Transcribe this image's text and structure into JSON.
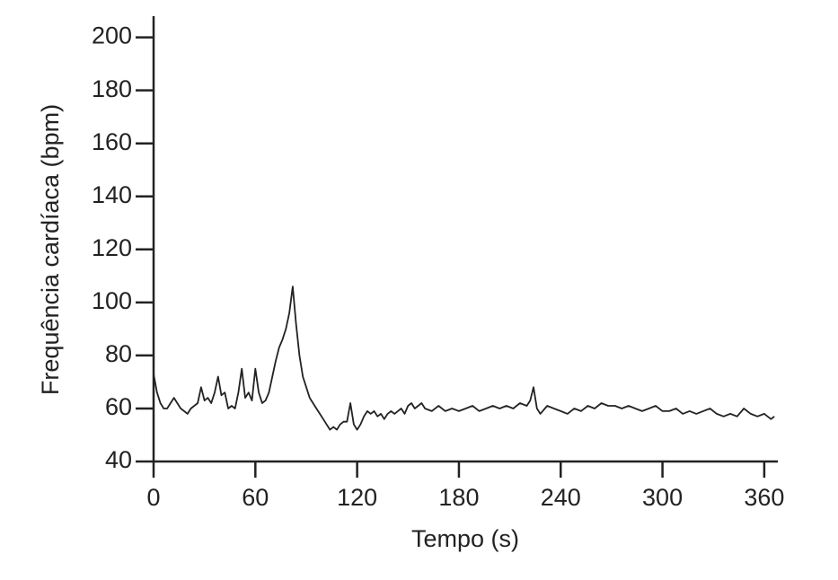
{
  "chart_data": {
    "type": "line",
    "x_label": "Tempo (s)",
    "y_label": "Frequência cardíaca (bpm)",
    "xlim": [
      0,
      368
    ],
    "ylim": [
      40,
      208
    ],
    "xticks": [
      0,
      60,
      120,
      180,
      240,
      300,
      360
    ],
    "yticks": [
      40,
      60,
      80,
      100,
      120,
      140,
      160,
      180,
      200
    ],
    "series": [
      {
        "color": "#222222",
        "x": [
          0,
          2,
          4,
          6,
          8,
          10,
          12,
          14,
          16,
          18,
          20,
          22,
          24,
          26,
          28,
          30,
          32,
          34,
          36,
          38,
          40,
          42,
          44,
          46,
          48,
          50,
          52,
          54,
          56,
          58,
          60,
          62,
          64,
          66,
          68,
          70,
          72,
          74,
          76,
          78,
          80,
          82,
          84,
          86,
          88,
          90,
          92,
          94,
          96,
          98,
          100,
          102,
          104,
          106,
          108,
          110,
          112,
          114,
          116,
          118,
          120,
          122,
          124,
          126,
          128,
          130,
          132,
          134,
          136,
          138,
          140,
          142,
          144,
          146,
          148,
          150,
          152,
          154,
          156,
          158,
          160,
          164,
          168,
          172,
          176,
          180,
          184,
          188,
          192,
          196,
          200,
          204,
          208,
          212,
          216,
          220,
          222,
          224,
          226,
          228,
          232,
          236,
          240,
          244,
          248,
          252,
          256,
          260,
          264,
          268,
          272,
          276,
          280,
          284,
          288,
          292,
          296,
          300,
          304,
          308,
          312,
          316,
          320,
          324,
          328,
          332,
          336,
          340,
          344,
          348,
          352,
          356,
          360,
          364,
          366
        ],
        "values": [
          73,
          66,
          62,
          60,
          60,
          62,
          64,
          62,
          60,
          59,
          58,
          60,
          61,
          62,
          68,
          63,
          64,
          62,
          66,
          72,
          65,
          66,
          60,
          61,
          60,
          66,
          75,
          64,
          66,
          63,
          75,
          66,
          62,
          63,
          66,
          72,
          78,
          83,
          86,
          90,
          96,
          106,
          92,
          80,
          72,
          68,
          64,
          62,
          60,
          58,
          56,
          54,
          52,
          53,
          52,
          54,
          55,
          55,
          62,
          54,
          52,
          54,
          57,
          59,
          58,
          59,
          57,
          58,
          56,
          58,
          59,
          58,
          59,
          60,
          58,
          61,
          62,
          60,
          61,
          62,
          60,
          59,
          61,
          59,
          60,
          59,
          60,
          61,
          59,
          60,
          61,
          60,
          61,
          60,
          62,
          61,
          63,
          68,
          60,
          58,
          61,
          60,
          59,
          58,
          60,
          59,
          61,
          60,
          62,
          61,
          61,
          60,
          61,
          60,
          59,
          60,
          61,
          59,
          59,
          60,
          58,
          59,
          58,
          59,
          60,
          58,
          57,
          58,
          57,
          60,
          58,
          57,
          58,
          56,
          57
        ]
      }
    ]
  }
}
